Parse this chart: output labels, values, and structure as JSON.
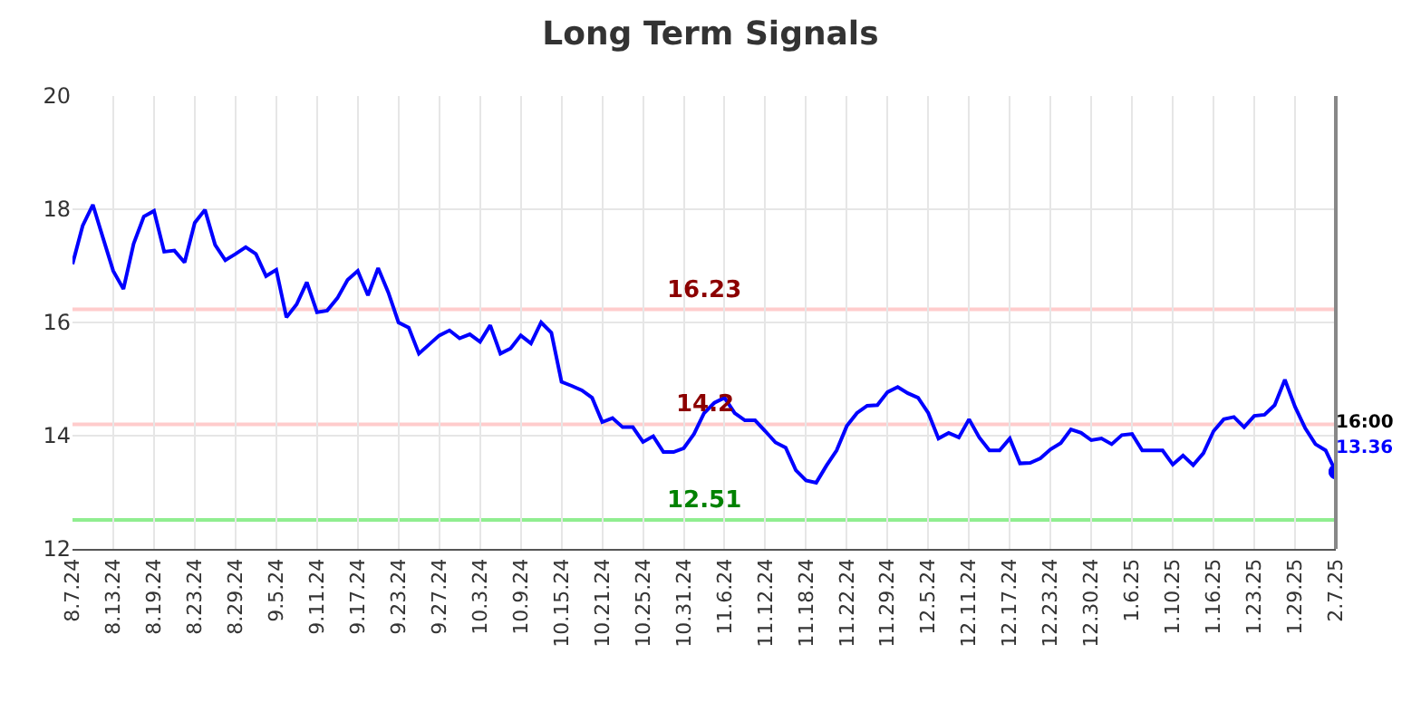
{
  "chart_data": {
    "type": "line",
    "title": "Long Term Signals",
    "categories": [
      "8.7.24",
      null,
      null,
      null,
      "8.13.24",
      null,
      null,
      null,
      "8.19.24",
      null,
      null,
      null,
      "8.23.24",
      null,
      null,
      null,
      "8.29.24",
      null,
      null,
      null,
      "9.5.24",
      null,
      null,
      null,
      "9.11.24",
      null,
      null,
      null,
      "9.17.24",
      null,
      null,
      null,
      "9.23.24",
      null,
      null,
      null,
      "9.27.24",
      null,
      null,
      null,
      "10.3.24",
      null,
      null,
      null,
      "10.9.24",
      null,
      null,
      null,
      "10.15.24",
      null,
      null,
      null,
      "10.21.24",
      null,
      null,
      null,
      "10.25.24",
      null,
      null,
      null,
      "10.31.24",
      null,
      null,
      null,
      "11.6.24",
      null,
      null,
      null,
      "11.12.24",
      null,
      null,
      null,
      "11.18.24",
      null,
      null,
      null,
      "11.22.24",
      null,
      null,
      null,
      "11.29.24",
      null,
      null,
      null,
      "12.5.24",
      null,
      null,
      null,
      "12.11.24",
      null,
      null,
      null,
      "12.17.24",
      null,
      null,
      null,
      "12.23.24",
      null,
      null,
      null,
      "12.30.24",
      null,
      null,
      null,
      "1.6.25",
      null,
      null,
      null,
      "1.10.25",
      null,
      null,
      null,
      "1.16.25",
      null,
      null,
      null,
      "1.23.25",
      null,
      null,
      null,
      "1.29.25",
      null,
      null,
      null,
      "2.7.25"
    ],
    "series": [
      {
        "color": "#0000ff",
        "values": [
          17.03,
          17.71,
          18.08,
          17.49,
          16.91,
          16.59,
          17.39,
          17.87,
          17.97,
          17.25,
          17.27,
          17.06,
          17.76,
          17.99,
          17.37,
          17.1,
          17.21,
          17.33,
          17.21,
          16.82,
          16.93,
          16.09,
          16.32,
          16.71,
          16.18,
          16.21,
          16.43,
          16.75,
          16.91,
          16.48,
          16.96,
          16.53,
          16.0,
          15.91,
          15.45,
          15.61,
          15.77,
          15.86,
          15.72,
          15.79,
          15.66,
          15.95,
          15.45,
          15.54,
          15.77,
          15.63,
          16.0,
          15.82,
          14.95,
          14.88,
          14.8,
          14.67,
          14.24,
          14.31,
          14.15,
          14.15,
          13.89,
          13.99,
          13.71,
          13.71,
          13.78,
          14.03,
          14.4,
          14.58,
          14.67,
          14.4,
          14.27,
          14.27,
          14.08,
          13.88,
          13.79,
          13.39,
          13.21,
          13.17,
          13.47,
          13.74,
          14.17,
          14.4,
          14.53,
          14.54,
          14.77,
          14.86,
          14.75,
          14.67,
          14.4,
          13.95,
          14.05,
          13.97,
          14.29,
          13.97,
          13.74,
          13.74,
          13.95,
          13.51,
          13.52,
          13.6,
          13.76,
          13.87,
          14.11,
          14.05,
          13.92,
          13.95,
          13.85,
          14.01,
          14.03,
          13.74,
          13.74,
          13.74,
          13.49,
          13.65,
          13.48,
          13.69,
          14.08,
          14.29,
          14.33,
          14.15,
          14.35,
          14.37,
          14.54,
          14.99,
          14.51,
          14.13,
          13.85,
          13.74,
          13.36
        ]
      }
    ],
    "ylim": [
      12,
      20
    ],
    "yticks": [
      12,
      14,
      16,
      18,
      20
    ],
    "grid": true,
    "marker": "none",
    "line_style": "solid",
    "ref_lines": [
      {
        "axis": "y",
        "value": 16.23,
        "label": "16.23",
        "color": "#ffcccc"
      },
      {
        "axis": "y",
        "value": 14.2,
        "label": "14.2",
        "color": "#ffcccc"
      },
      {
        "axis": "y",
        "value": 12.51,
        "label": "12.51",
        "color": "#90ee90"
      }
    ],
    "annotations": [
      {
        "text": "16:00",
        "x": "2.7.25",
        "y": 13.36
      },
      {
        "text": "13.36",
        "x": "2.7.25",
        "y": 13.36
      }
    ]
  }
}
